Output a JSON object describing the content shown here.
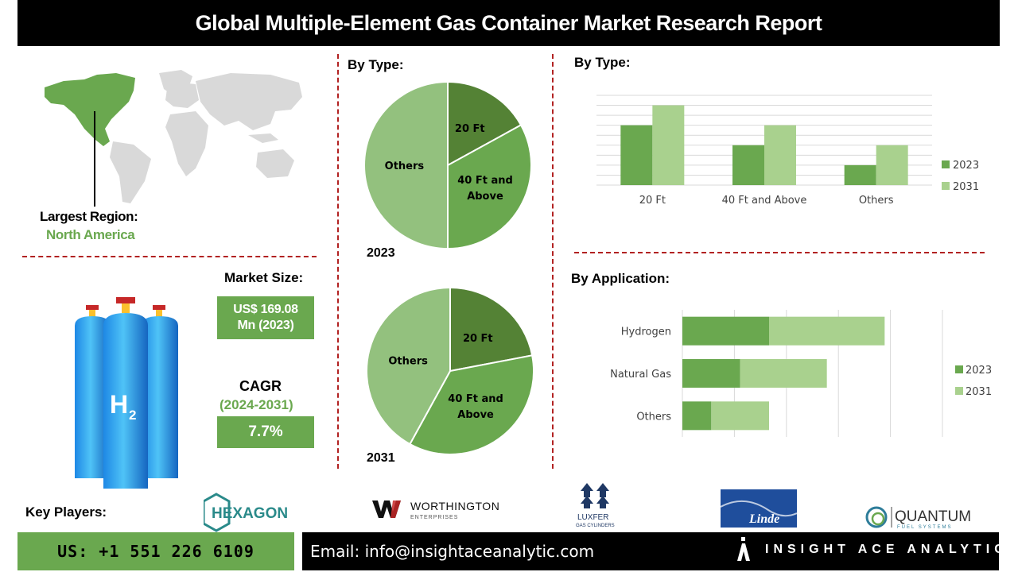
{
  "header": {
    "title": "Global Multiple-Element Gas Container Market Research Report"
  },
  "region": {
    "label": "Largest Region:",
    "value": "North America"
  },
  "market_size": {
    "label": "Market Size:",
    "value_line1": "US$ 169.08",
    "value_line2": "Mn (2023)"
  },
  "cagr": {
    "label": "CAGR",
    "period": "(2024-2031)",
    "value": "7.7%"
  },
  "cylinder": {
    "label": "H",
    "subscript": "2"
  },
  "colors": {
    "dark_green": "#548235",
    "mid_green": "#70ad47",
    "light_green": "#93c17e",
    "lighter_green": "#a9d18e",
    "accent_text": "#6aa84f",
    "divider": "#b22222"
  },
  "pie_section": {
    "title": "By Type:"
  },
  "bar_section": {
    "title": "By Type:"
  },
  "hbar_section": {
    "title": "By Application:"
  },
  "key_players": {
    "label": "Key Players:",
    "hexagon": "HEXAGON",
    "worthington": "WORTHINGTON",
    "worthington_sub": "ENTERPRISES",
    "luxfer": "LUXFER",
    "luxfer_sub": "GAS CYLINDERS",
    "linde": "Linde",
    "quantum": "QUANTUM",
    "quantum_sub": "FUEL SYSTEMS"
  },
  "footer": {
    "phone": "US: +1 551 226 6109",
    "email": "Email: info@insightaceanalytic.com",
    "brand": "INSIGHT ACE ANALYTIC"
  },
  "chart_data": [
    {
      "type": "pie",
      "year": "2023",
      "labels": [
        "20 Ft",
        "40 Ft and Above",
        "Others"
      ],
      "label_lines": [
        [
          "20 Ft"
        ],
        [
          "40 Ft and",
          "Above"
        ],
        [
          "Others"
        ]
      ],
      "values": [
        17,
        33,
        50
      ],
      "colors": [
        "#548235",
        "#6aa84f",
        "#93c17e"
      ]
    },
    {
      "type": "pie",
      "year": "2031",
      "labels": [
        "20 Ft",
        "40 Ft and Above",
        "Others"
      ],
      "label_lines": [
        [
          "20 Ft"
        ],
        [
          "40 Ft and",
          "Above"
        ],
        [
          "Others"
        ]
      ],
      "values": [
        22,
        36,
        42
      ],
      "colors": [
        "#548235",
        "#6aa84f",
        "#93c17e"
      ]
    },
    {
      "type": "bar",
      "title": "By Type:",
      "categories": [
        "20 Ft",
        "40 Ft and Above",
        "Others"
      ],
      "series": [
        {
          "name": "2023",
          "values": [
            3,
            2,
            1
          ],
          "color": "#6aa84f"
        },
        {
          "name": "2031",
          "values": [
            4,
            3,
            2
          ],
          "color": "#a9d18e"
        }
      ],
      "ylim": [
        0,
        4.5
      ],
      "grid": true,
      "legend": "right"
    },
    {
      "type": "bar",
      "orientation": "horizontal",
      "stacked": true,
      "title": "By Application:",
      "categories": [
        "Hydrogen",
        "Natural Gas",
        "Others"
      ],
      "series": [
        {
          "name": "2023",
          "values": [
            3,
            2,
            1
          ],
          "color": "#6aa84f"
        },
        {
          "name": "2031",
          "values": [
            4,
            3,
            2
          ],
          "color": "#a9d18e"
        }
      ],
      "xlim": [
        0,
        9
      ],
      "grid": true,
      "legend": "right"
    }
  ]
}
